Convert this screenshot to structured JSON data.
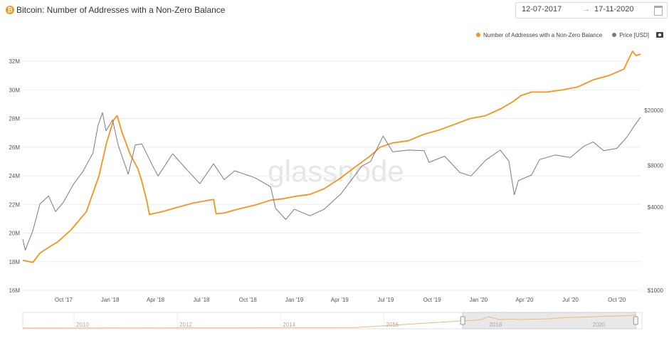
{
  "header": {
    "title": "Bitcoin: Number of Addresses with a Non-Zero Balance",
    "date_start": "12-07-2017",
    "date_end": "17-11-2020",
    "arrow": "→"
  },
  "legend": [
    {
      "label": "Number of Addresses with a Non-Zero Balance",
      "color": "#f7931a"
    },
    {
      "label": "Price [USD]",
      "color": "#7a7a7a"
    }
  ],
  "watermark": "glassnode",
  "chart_data": {
    "type": "line",
    "title": "Bitcoin: Number of Addresses with a Non-Zero Balance",
    "x_range": [
      "2017-07-12",
      "2020-11-17"
    ],
    "x_ticks": [
      "Oct '17",
      "Jan '18",
      "Apr '18",
      "Jul '18",
      "Oct '18",
      "Jan '19",
      "Apr '19",
      "Jul '19",
      "Oct '19",
      "Jan '20",
      "Apr '20",
      "Jul '20",
      "Oct '20"
    ],
    "x_tick_dates": [
      "2017-10-01",
      "2018-01-01",
      "2018-04-01",
      "2018-07-01",
      "2018-10-01",
      "2019-01-01",
      "2019-04-01",
      "2019-07-01",
      "2019-10-01",
      "2020-01-01",
      "2020-04-01",
      "2020-07-01",
      "2020-10-01"
    ],
    "y_left": {
      "ticks": [
        "16M",
        "18M",
        "20M",
        "22M",
        "24M",
        "26M",
        "28M",
        "30M",
        "32M"
      ],
      "tick_values": [
        16,
        18,
        20,
        22,
        24,
        26,
        28,
        30,
        32
      ],
      "range": [
        16,
        33.2
      ],
      "unit": "M",
      "scale": "linear"
    },
    "y_right": {
      "ticks": [
        "$1000",
        "$4000",
        "$8000",
        "$20000"
      ],
      "tick_values": [
        1000,
        4000,
        8000,
        20000
      ],
      "range": [
        1000,
        60000
      ],
      "scale": "log"
    },
    "grid": true,
    "legend_position": "top-right",
    "series": [
      {
        "name": "Number of Addresses with a Non-Zero Balance",
        "axis": "left",
        "color": "#f7931a",
        "points": [
          [
            "2017-07-12",
            18.1
          ],
          [
            "2017-08-01",
            17.95
          ],
          [
            "2017-08-15",
            18.6
          ],
          [
            "2017-09-01",
            19.0
          ],
          [
            "2017-09-20",
            19.4
          ],
          [
            "2017-10-15",
            20.2
          ],
          [
            "2017-11-15",
            21.5
          ],
          [
            "2017-12-10",
            24.0
          ],
          [
            "2017-12-25",
            26.3
          ],
          [
            "2018-01-08",
            27.9
          ],
          [
            "2018-01-15",
            28.2
          ],
          [
            "2018-01-25",
            27.0
          ],
          [
            "2018-02-10",
            25.5
          ],
          [
            "2018-02-25",
            24.5
          ],
          [
            "2018-03-05",
            23.6
          ],
          [
            "2018-03-15",
            22.2
          ],
          [
            "2018-03-20",
            21.3
          ],
          [
            "2018-04-15",
            21.5
          ],
          [
            "2018-05-15",
            21.8
          ],
          [
            "2018-06-15",
            22.1
          ],
          [
            "2018-07-25",
            22.35
          ],
          [
            "2018-07-30",
            21.35
          ],
          [
            "2018-08-15",
            21.4
          ],
          [
            "2018-09-15",
            21.7
          ],
          [
            "2018-10-15",
            21.95
          ],
          [
            "2018-11-15",
            22.3
          ],
          [
            "2018-12-10",
            22.4
          ],
          [
            "2019-01-01",
            22.55
          ],
          [
            "2019-02-01",
            22.7
          ],
          [
            "2019-03-01",
            23.1
          ],
          [
            "2019-04-01",
            23.8
          ],
          [
            "2019-05-01",
            24.6
          ],
          [
            "2019-06-01",
            25.4
          ],
          [
            "2019-06-20",
            26.0
          ],
          [
            "2019-07-15",
            26.3
          ],
          [
            "2019-08-15",
            26.45
          ],
          [
            "2019-09-15",
            26.9
          ],
          [
            "2019-10-15",
            27.2
          ],
          [
            "2019-11-15",
            27.6
          ],
          [
            "2019-12-15",
            28.0
          ],
          [
            "2020-01-15",
            28.2
          ],
          [
            "2020-02-15",
            28.7
          ],
          [
            "2020-03-10",
            29.2
          ],
          [
            "2020-03-25",
            29.6
          ],
          [
            "2020-04-15",
            29.85
          ],
          [
            "2020-05-15",
            29.85
          ],
          [
            "2020-06-15",
            30.0
          ],
          [
            "2020-07-15",
            30.2
          ],
          [
            "2020-08-15",
            30.7
          ],
          [
            "2020-09-15",
            31.0
          ],
          [
            "2020-10-15",
            31.45
          ],
          [
            "2020-10-25",
            32.2
          ],
          [
            "2020-11-01",
            32.7
          ],
          [
            "2020-11-08",
            32.4
          ],
          [
            "2020-11-17",
            32.5
          ]
        ]
      },
      {
        "name": "Price [USD]",
        "axis": "right",
        "color": "#7a7a7a",
        "points": [
          [
            "2017-07-12",
            2350
          ],
          [
            "2017-07-17",
            1950
          ],
          [
            "2017-08-01",
            2700
          ],
          [
            "2017-08-15",
            4200
          ],
          [
            "2017-09-01",
            4800
          ],
          [
            "2017-09-15",
            3700
          ],
          [
            "2017-10-01",
            4350
          ],
          [
            "2017-10-20",
            5800
          ],
          [
            "2017-11-08",
            7200
          ],
          [
            "2017-11-28",
            9800
          ],
          [
            "2017-12-08",
            15500
          ],
          [
            "2017-12-17",
            19200
          ],
          [
            "2017-12-24",
            14200
          ],
          [
            "2018-01-06",
            17000
          ],
          [
            "2018-01-17",
            11200
          ],
          [
            "2018-02-06",
            6900
          ],
          [
            "2018-02-20",
            11200
          ],
          [
            "2018-03-05",
            11400
          ],
          [
            "2018-03-25",
            8100
          ],
          [
            "2018-04-06",
            6700
          ],
          [
            "2018-05-05",
            9700
          ],
          [
            "2018-06-01",
            7500
          ],
          [
            "2018-06-28",
            5900
          ],
          [
            "2018-07-25",
            8200
          ],
          [
            "2018-08-15",
            6300
          ],
          [
            "2018-09-05",
            7300
          ],
          [
            "2018-10-15",
            6500
          ],
          [
            "2018-11-15",
            5600
          ],
          [
            "2018-11-25",
            3900
          ],
          [
            "2018-12-15",
            3250
          ],
          [
            "2019-01-01",
            3850
          ],
          [
            "2019-02-01",
            3450
          ],
          [
            "2019-03-01",
            3850
          ],
          [
            "2019-04-03",
            4950
          ],
          [
            "2019-05-15",
            7900
          ],
          [
            "2019-06-01",
            8500
          ],
          [
            "2019-06-26",
            13000
          ],
          [
            "2019-07-15",
            10000
          ],
          [
            "2019-08-15",
            10300
          ],
          [
            "2019-09-15",
            10200
          ],
          [
            "2019-09-25",
            8400
          ],
          [
            "2019-10-26",
            9300
          ],
          [
            "2019-11-25",
            7100
          ],
          [
            "2019-12-17",
            6700
          ],
          [
            "2020-01-15",
            8700
          ],
          [
            "2020-02-13",
            10300
          ],
          [
            "2020-03-01",
            8600
          ],
          [
            "2020-03-12",
            4900
          ],
          [
            "2020-03-20",
            6200
          ],
          [
            "2020-04-15",
            6800
          ],
          [
            "2020-05-01",
            8800
          ],
          [
            "2020-06-01",
            9500
          ],
          [
            "2020-07-01",
            9100
          ],
          [
            "2020-07-28",
            11000
          ],
          [
            "2020-08-15",
            11800
          ],
          [
            "2020-09-05",
            10200
          ],
          [
            "2020-10-01",
            10600
          ],
          [
            "2020-10-21",
            12800
          ],
          [
            "2020-11-05",
            15500
          ],
          [
            "2020-11-17",
            17800
          ]
        ]
      }
    ]
  },
  "navigator": {
    "labels": [
      "2010",
      "2012",
      "2014",
      "2016",
      "2018",
      "2020"
    ],
    "label_dates": [
      "2010-01-01",
      "2012-01-01",
      "2014-01-01",
      "2016-01-01",
      "2018-01-01",
      "2020-01-01"
    ],
    "range": [
      "2009-01-03",
      "2020-12-31"
    ],
    "selected": [
      "2017-07-12",
      "2020-11-17"
    ]
  }
}
